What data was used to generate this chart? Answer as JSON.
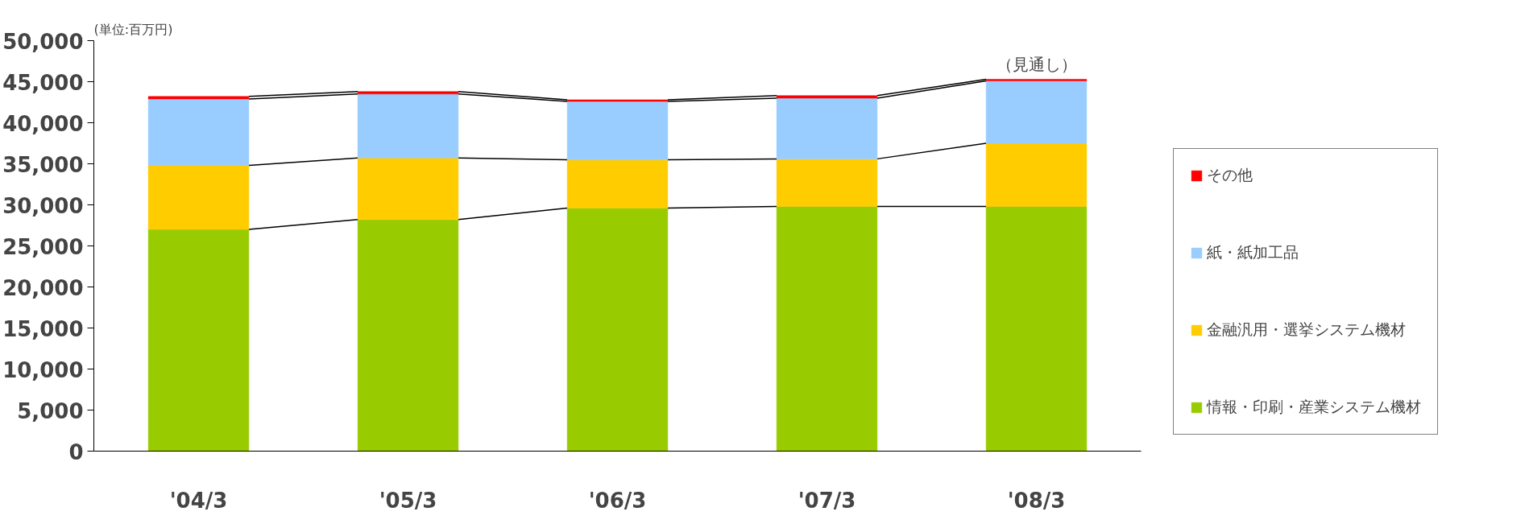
{
  "chart_data": {
    "type": "bar",
    "stacked": true,
    "ylabel": "(単位:百万円)",
    "categories": [
      "'04/3",
      "'05/3",
      "'06/3",
      "'07/3",
      "'08/3"
    ],
    "series": [
      {
        "name": "情報・印刷・産業システム機材",
        "color": "#99cc00",
        "values": [
          27000,
          28200,
          29600,
          29800,
          29800
        ]
      },
      {
        "name": "金融汎用・選挙システム機材",
        "color": "#ffcc00",
        "values": [
          7800,
          7500,
          5900,
          5800,
          7700
        ]
      },
      {
        "name": "紙・紙加工品",
        "color": "#99ccff",
        "values": [
          8100,
          7800,
          7100,
          7400,
          7600
        ]
      },
      {
        "name": "その他",
        "color": "#ff0000",
        "values": [
          300,
          300,
          200,
          300,
          200
        ]
      }
    ],
    "ylim": [
      0,
      50000
    ],
    "yticks": [
      {
        "value": 0,
        "label": "0"
      },
      {
        "value": 5000,
        "label": "5,000"
      },
      {
        "value": 10000,
        "label": "10,000"
      },
      {
        "value": 15000,
        "label": "15,000"
      },
      {
        "value": 20000,
        "label": "20,000"
      },
      {
        "value": 25000,
        "label": "25,000"
      },
      {
        "value": 30000,
        "label": "30,000"
      },
      {
        "value": 35000,
        "label": "35,000"
      },
      {
        "value": 40000,
        "label": "40,000"
      },
      {
        "value": 45000,
        "label": "45,000"
      },
      {
        "value": 50000,
        "label": "50,000"
      }
    ],
    "annotations": [
      {
        "text": "（見通し）",
        "x": "'08/3",
        "y": 45300
      }
    ],
    "grid": false,
    "legend": "right"
  }
}
